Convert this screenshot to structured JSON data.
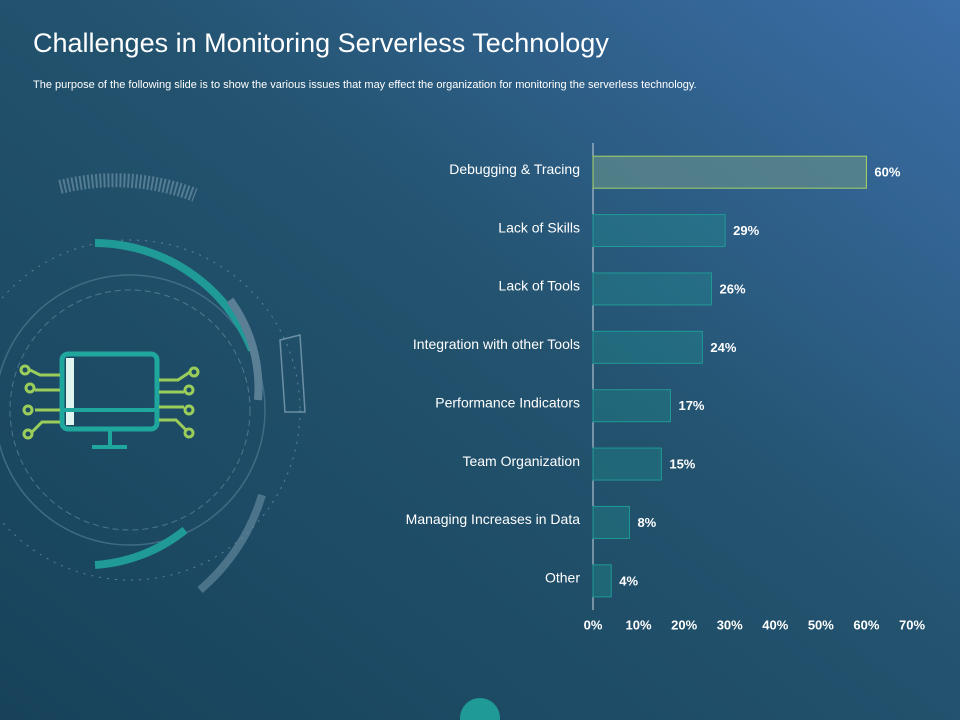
{
  "chart_data": {
    "type": "bar",
    "orientation": "horizontal",
    "title": "Challenges in Monitoring Serverless Technology",
    "subtitle": "The purpose of the following slide is to show the various issues that may effect the organization for monitoring the serverless technology.",
    "categories": [
      "Debugging & Tracing",
      "Lack of Skills",
      "Lack of Tools",
      "Integration with other Tools",
      "Performance Indicators",
      "Team Organization",
      "Managing Increases in Data",
      "Other"
    ],
    "values": [
      60,
      29,
      26,
      24,
      17,
      15,
      8,
      4
    ],
    "value_labels": [
      "60%",
      "29%",
      "26%",
      "24%",
      "17%",
      "15%",
      "8%",
      "4%"
    ],
    "color": "#1f9a96",
    "highlight_color": "#a6d46a",
    "xlim": [
      0,
      70
    ],
    "xticks": [
      {
        "value": 0,
        "label": "0%"
      },
      {
        "value": 10,
        "label": "10%"
      },
      {
        "value": 20,
        "label": "20%"
      },
      {
        "value": 30,
        "label": "30%"
      },
      {
        "value": 40,
        "label": "40%"
      },
      {
        "value": 50,
        "label": "50%"
      },
      {
        "value": 60,
        "label": "60%"
      },
      {
        "value": 70,
        "label": "70%"
      }
    ]
  }
}
